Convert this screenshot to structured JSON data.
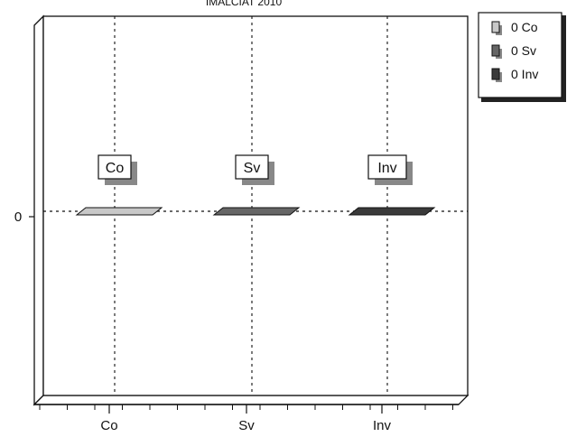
{
  "chart_data": {
    "type": "bar",
    "title": "IMALCIAT 2010",
    "categories": [
      "Co",
      "Sv",
      "Inv"
    ],
    "values": [
      0,
      0,
      0
    ],
    "y_ticks": [
      "0"
    ],
    "ylim": [
      -1,
      1
    ],
    "grid": true,
    "legend_position": "top-right",
    "legend": [
      "0 Co",
      "0 Sv",
      "0 Inv"
    ],
    "bar_labels": [
      "Co",
      "Sv",
      "Inv"
    ],
    "colors": [
      "#c8c8c8",
      "#666666",
      "#3a3a3a"
    ]
  }
}
